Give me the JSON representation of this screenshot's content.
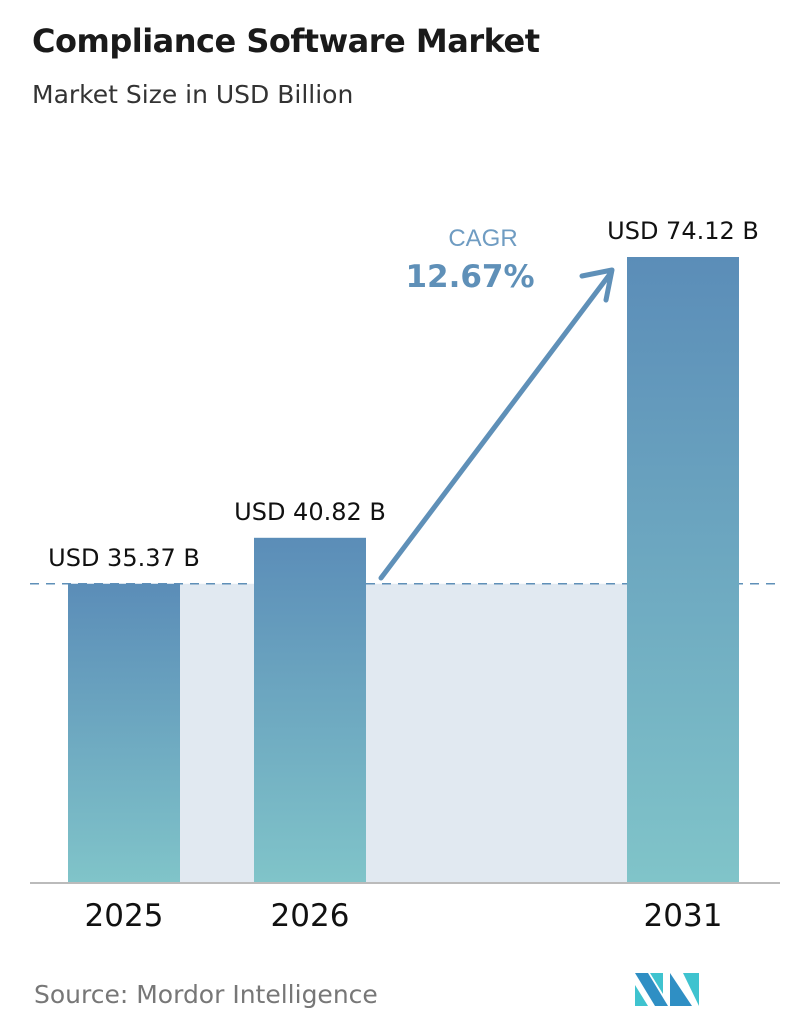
{
  "chart_data": {
    "type": "bar",
    "title": "Compliance Software Market",
    "subtitle": "Market Size in USD Billion",
    "categories": [
      "2025",
      "2026",
      "2031"
    ],
    "values": [
      35.37,
      40.82,
      74.12
    ],
    "data_labels": [
      "USD 35.37 B",
      "USD 40.82 B",
      "USD 74.12 B"
    ],
    "ylim": [
      0,
      74.12
    ],
    "grid": false,
    "annotation": {
      "label": "CAGR",
      "value": "12.67%"
    },
    "colors": {
      "bar_top": "#5b8db8",
      "bar_bottom": "#80c4c9",
      "shade": "#e1e9f1",
      "accent": "#5f90b8"
    }
  },
  "source": "Source:  Mordor Intelligence",
  "logo": {
    "text": "Mordor Intelligence"
  }
}
